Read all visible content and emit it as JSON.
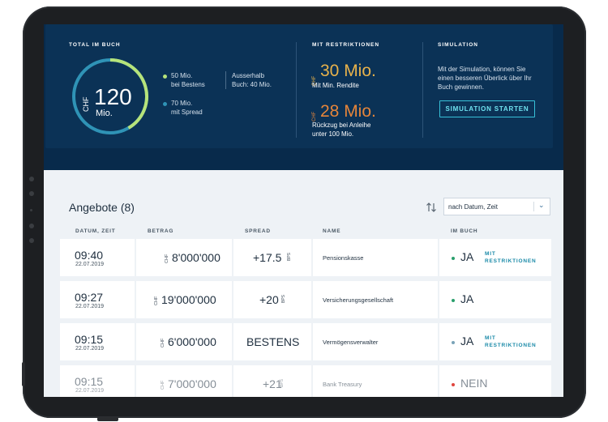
{
  "hero": {
    "total": {
      "title": "TOTAL IM BUCH",
      "currency": "CHF",
      "value": "120",
      "unit": "Mio.",
      "legend": [
        {
          "line1": "50 Mio.",
          "line2": "bei Bestens",
          "color": "#b6e37a"
        },
        {
          "line1": "70 Mio.",
          "line2": "mit Spread",
          "color": "#2f93b6"
        }
      ],
      "outside": {
        "line1": "Ausserhalb",
        "line2": "Buch: 40 Mio."
      },
      "donut_share": {
        "bestens": 50,
        "spread": 70
      }
    },
    "restrictions": {
      "title": "MIT RESTRIKTIONEN",
      "items": [
        {
          "currency": "CHF",
          "value": "30 Mio.",
          "sub1": "Mit Min. Rendite",
          "sub2": "",
          "color": "#e8b24b"
        },
        {
          "currency": "CHF",
          "value": "28 Mio.",
          "sub1": "Rückzug bei Anleihe",
          "sub2": "unter 100 Mio.",
          "color": "#e5853a"
        }
      ]
    },
    "simulation": {
      "title": "SIMULATION",
      "text": "Mit der Simulation, können Sie einen besseren Überlick über Ihr Buch gewinnen.",
      "button": "SIMULATION STARTEN"
    }
  },
  "list": {
    "title": "Angebote (8)",
    "sort_select": "nach Datum, Zeit",
    "columns": [
      "DATUM, ZEIT",
      "BETRAG",
      "SPREAD",
      "NAME",
      "IM BUCH"
    ],
    "rows": [
      {
        "time": "09:40",
        "date": "22.07.2019",
        "currency": "CHF",
        "amount": "8'000'000",
        "spread": "+17.5",
        "spread_unit": "BPS",
        "name": "Pensionskasse",
        "status": "JA",
        "status_color": "#2a9f6c",
        "restriction": [
          "MIT",
          "RESTRIKTIONEN"
        ]
      },
      {
        "time": "09:27",
        "date": "22.07.2019",
        "currency": "CHF",
        "amount": "19'000'000",
        "spread": "+20",
        "spread_unit": "BPS",
        "name": "Versicherungsgesellschaft",
        "status": "JA",
        "status_color": "#2a9f6c",
        "restriction": [
          "",
          ""
        ]
      },
      {
        "time": "09:15",
        "date": "22.07.2019",
        "currency": "CHF",
        "amount": "6'000'000",
        "spread": "BESTENS",
        "spread_unit": "",
        "name": "Vermögensverwalter",
        "status": "JA",
        "status_color": "#7aa3b8",
        "restriction": [
          "MIT",
          "RESTRIKTIONEN"
        ]
      },
      {
        "time": "09:15",
        "date": "22.07.2019",
        "currency": "CHF",
        "amount": "7'000'000",
        "spread": "+21",
        "spread_unit": "BPS",
        "name": "Bank Treasury",
        "status": "NEIN",
        "status_color": "#e0463e",
        "restriction": [
          "",
          ""
        ]
      }
    ]
  }
}
